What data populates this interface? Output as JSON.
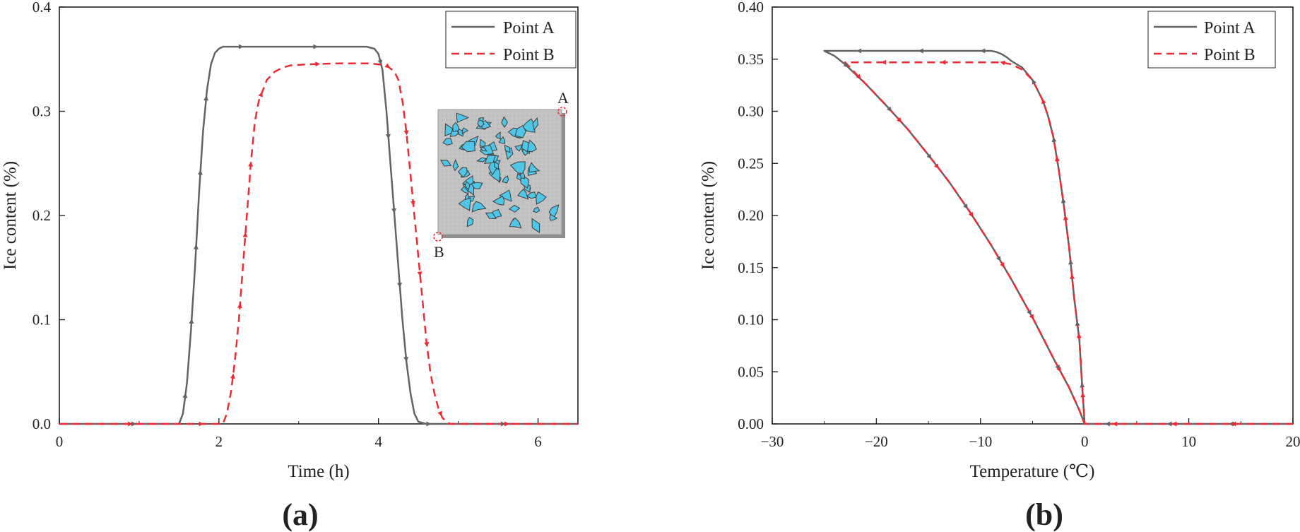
{
  "chart_data": [
    {
      "panel": "a",
      "panel_label": "(a)",
      "type": "line",
      "xlabel": "Time (h)",
      "ylabel": "Ice content (%)",
      "xlim": [
        0,
        6.5
      ],
      "ylim": [
        0,
        0.4
      ],
      "xticks": [
        0,
        2,
        4,
        6
      ],
      "yticks": [
        0.0,
        0.1,
        0.2,
        0.3,
        0.4
      ],
      "xtick_labels": [
        "0",
        "2",
        "4",
        "6"
      ],
      "ytick_labels": [
        "0.0",
        "0.1",
        "0.2",
        "0.3",
        "0.4"
      ],
      "legend_position": "top-right",
      "inset": {
        "description_marks": [
          "A",
          "B"
        ]
      },
      "series": [
        {
          "name": "Point A",
          "color": "#636363",
          "style": "solid",
          "x": [
            0,
            1.5,
            1.55,
            1.6,
            1.65,
            1.7,
            1.75,
            1.8,
            1.85,
            1.9,
            1.95,
            2.0,
            2.05,
            2.1,
            2.2,
            2.4,
            3.0,
            3.6,
            3.85,
            3.95,
            4.0,
            4.05,
            4.1,
            4.15,
            4.2,
            4.25,
            4.3,
            4.35,
            4.4,
            4.45,
            4.5,
            4.6,
            5.2,
            6.5
          ],
          "y": [
            0,
            0,
            0.01,
            0.04,
            0.09,
            0.15,
            0.22,
            0.28,
            0.32,
            0.345,
            0.356,
            0.36,
            0.362,
            0.362,
            0.362,
            0.362,
            0.362,
            0.362,
            0.362,
            0.36,
            0.355,
            0.34,
            0.3,
            0.25,
            0.2,
            0.15,
            0.1,
            0.06,
            0.03,
            0.01,
            0.002,
            0,
            0,
            0
          ]
        },
        {
          "name": "Point B",
          "color": "#ee2a35",
          "style": "dashed",
          "x": [
            0,
            2.05,
            2.1,
            2.15,
            2.2,
            2.25,
            2.3,
            2.35,
            2.4,
            2.45,
            2.5,
            2.6,
            2.7,
            2.8,
            2.9,
            3.1,
            3.5,
            3.9,
            4.1,
            4.2,
            4.25,
            4.3,
            4.35,
            4.4,
            4.45,
            4.5,
            4.55,
            4.6,
            4.65,
            4.7,
            4.75,
            4.8,
            4.85,
            4.9,
            5.0,
            6.5
          ],
          "y": [
            0,
            0,
            0.01,
            0.03,
            0.06,
            0.1,
            0.15,
            0.2,
            0.25,
            0.29,
            0.31,
            0.33,
            0.338,
            0.342,
            0.344,
            0.345,
            0.346,
            0.346,
            0.344,
            0.338,
            0.33,
            0.31,
            0.28,
            0.24,
            0.2,
            0.16,
            0.12,
            0.08,
            0.05,
            0.03,
            0.015,
            0.006,
            0.002,
            0,
            0,
            0
          ]
        }
      ]
    },
    {
      "panel": "b",
      "panel_label": "(b)",
      "type": "line",
      "xlabel": "Temperature (℃)",
      "ylabel": "Ice content (%)",
      "xlim": [
        -30,
        20
      ],
      "ylim": [
        0,
        0.4
      ],
      "xticks": [
        -30,
        -20,
        -10,
        0,
        10,
        20
      ],
      "yticks": [
        0.0,
        0.05,
        0.1,
        0.15,
        0.2,
        0.25,
        0.3,
        0.35,
        0.4
      ],
      "xtick_labels": [
        "−30",
        "−20",
        "−10",
        "0",
        "10",
        "20"
      ],
      "ytick_labels": [
        "0.00",
        "0.05",
        "0.10",
        "0.15",
        "0.20",
        "0.25",
        "0.30",
        "0.35",
        "0.40"
      ],
      "legend_position": "top-right",
      "series": [
        {
          "name": "Point A",
          "color": "#636363",
          "style": "solid",
          "x": [
            20,
            0.5,
            0,
            -0.2,
            -0.5,
            -1.0,
            -1.5,
            -2.0,
            -2.5,
            -3.0,
            -3.5,
            -4.0,
            -5.0,
            -6.0,
            -7.0,
            -7.5,
            -8.0,
            -8.5,
            -9.0,
            -10,
            -12,
            -14,
            -17,
            -20,
            -22,
            -25,
            -24,
            -23,
            -21,
            -19,
            -17,
            -15,
            -13,
            -11,
            -9,
            -7,
            -5,
            -3,
            -1.5,
            -0.5,
            0
          ],
          "y": [
            0,
            0,
            0,
            0.03,
            0.08,
            0.12,
            0.17,
            0.21,
            0.245,
            0.275,
            0.295,
            0.31,
            0.33,
            0.342,
            0.348,
            0.352,
            0.355,
            0.357,
            0.358,
            0.358,
            0.358,
            0.358,
            0.358,
            0.358,
            0.358,
            0.358,
            0.353,
            0.345,
            0.326,
            0.305,
            0.283,
            0.258,
            0.232,
            0.203,
            0.172,
            0.138,
            0.102,
            0.063,
            0.035,
            0.013,
            0
          ]
        },
        {
          "name": "Point B",
          "color": "#ee2a35",
          "style": "dashed",
          "x": [
            20,
            0.5,
            0,
            -0.2,
            -0.5,
            -1.0,
            -1.5,
            -2.0,
            -2.5,
            -3.0,
            -3.5,
            -4.0,
            -5.0,
            -6.0,
            -7.0,
            -8.0,
            -10,
            -12,
            -14,
            -17,
            -20,
            -23,
            -23,
            -21,
            -19,
            -17,
            -15,
            -13,
            -11,
            -9,
            -7,
            -5,
            -3,
            -1.5,
            -0.5,
            0
          ],
          "y": [
            0,
            0,
            0,
            0.03,
            0.08,
            0.12,
            0.17,
            0.21,
            0.245,
            0.275,
            0.295,
            0.31,
            0.33,
            0.34,
            0.345,
            0.347,
            0.347,
            0.347,
            0.347,
            0.347,
            0.347,
            0.347,
            0.347,
            0.326,
            0.305,
            0.283,
            0.258,
            0.232,
            0.203,
            0.172,
            0.138,
            0.102,
            0.063,
            0.035,
            0.013,
            0
          ]
        }
      ]
    }
  ]
}
